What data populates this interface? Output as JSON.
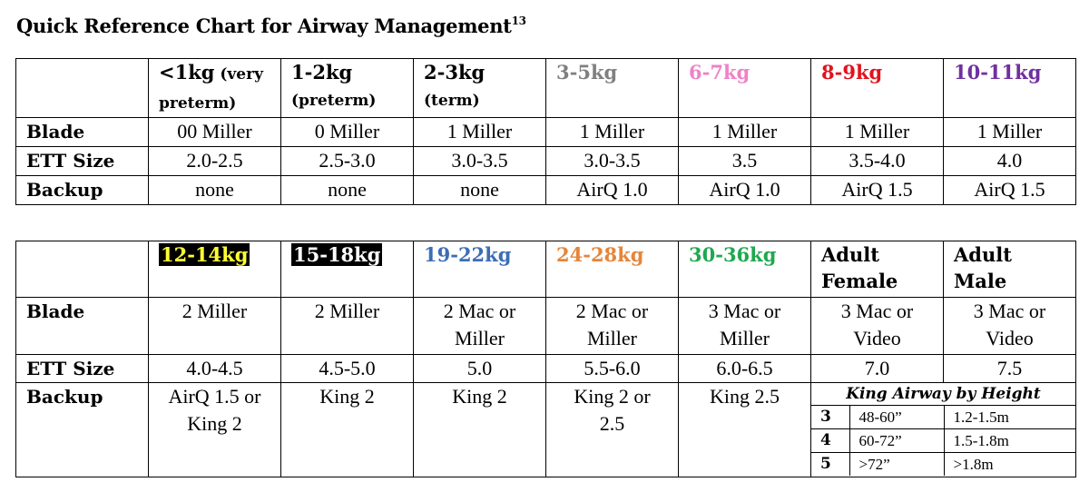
{
  "title": "Quick Reference Chart for Airway Management",
  "title_sup": "13",
  "table1": {
    "headers": [
      {
        "main": "<1kg",
        "sub": " (very",
        "line2": "preterm)",
        "color": "#000000"
      },
      {
        "main": "1-2kg",
        "sub": "",
        "line2": "(preterm)",
        "color": "#000000"
      },
      {
        "main": "2-3kg",
        "sub": "",
        "line2": "(term)",
        "color": "#000000"
      },
      {
        "main": "3-5kg",
        "sub": "",
        "line2": "",
        "color": "#808080"
      },
      {
        "main": "6-7kg",
        "sub": "",
        "line2": "",
        "color": "#ee82c8"
      },
      {
        "main": "8-9kg",
        "sub": "",
        "line2": "",
        "color": "#e0141e"
      },
      {
        "main": "10-11kg",
        "sub": "",
        "line2": "",
        "color": "#7030a0"
      }
    ],
    "rows": [
      {
        "label": "Blade",
        "cells": [
          "00 Miller",
          "0 Miller",
          "1 Miller",
          "1 Miller",
          "1 Miller",
          "1 Miller",
          "1 Miller"
        ]
      },
      {
        "label": "ETT Size",
        "cells": [
          "2.0-2.5",
          "2.5-3.0",
          "3.0-3.5",
          "3.0-3.5",
          "3.5",
          "3.5-4.0",
          "4.0"
        ]
      },
      {
        "label": "Backup",
        "cells": [
          "none",
          "none",
          "none",
          "AirQ 1.0",
          "AirQ 1.0",
          "AirQ 1.5",
          "AirQ 1.5"
        ]
      }
    ]
  },
  "table2": {
    "headers": [
      {
        "line1": "12-14kg",
        "line2": "",
        "color": "#ffff33",
        "highlight": "black"
      },
      {
        "line1": "15-18kg",
        "line2": "",
        "color": "#ffffff",
        "highlight": "black"
      },
      {
        "line1": "19-22kg",
        "line2": "",
        "color": "#3c6eb4",
        "highlight": ""
      },
      {
        "line1": "24-28kg",
        "line2": "",
        "color": "#e5863a",
        "highlight": ""
      },
      {
        "line1": "30-36kg",
        "line2": "",
        "color": "#1fa84f",
        "highlight": ""
      },
      {
        "line1": "Adult",
        "line2": "Female",
        "color": "#000000",
        "highlight": ""
      },
      {
        "line1": "Adult",
        "line2": "Male",
        "color": "#000000",
        "highlight": ""
      }
    ],
    "blade": {
      "label": "Blade",
      "cells": [
        [
          "2 Miller",
          ""
        ],
        [
          "2 Miller",
          ""
        ],
        [
          "2 Mac or",
          "Miller"
        ],
        [
          "2 Mac or",
          "Miller"
        ],
        [
          "3 Mac or",
          "Miller"
        ],
        [
          "3 Mac or",
          "Video"
        ],
        [
          "3 Mac or",
          "Video"
        ]
      ]
    },
    "ett": {
      "label": "ETT Size",
      "cells": [
        "4.0-4.5",
        "4.5-5.0",
        "5.0",
        "5.5-6.0",
        "6.0-6.5",
        "7.0",
        "7.5"
      ]
    },
    "backup": {
      "label": "Backup",
      "cells": [
        [
          "AirQ 1.5 or",
          "King 2"
        ],
        [
          "King 2",
          ""
        ],
        [
          "King 2",
          ""
        ],
        [
          "King 2 or",
          "2.5"
        ],
        [
          "King 2.5",
          ""
        ]
      ]
    },
    "king": {
      "title": "King Airway by Height",
      "rows": [
        {
          "size": "3",
          "height": "48-60”",
          "metric": "1.2-1.5m"
        },
        {
          "size": "4",
          "height": "60-72”",
          "metric": "1.5-1.8m"
        },
        {
          "size": "5",
          "height": ">72”",
          "metric": ">1.8m"
        }
      ]
    }
  }
}
